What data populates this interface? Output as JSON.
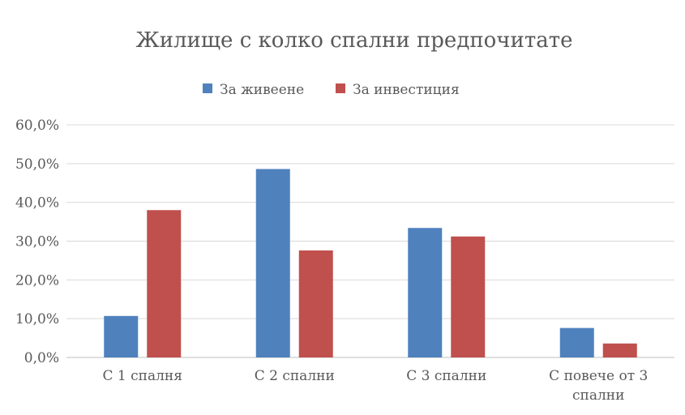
{
  "chart_data": {
    "type": "bar",
    "title": "Жилище с колко спални предпочитате",
    "categories": [
      [
        "С 1 спалня"
      ],
      [
        "С 2 спални"
      ],
      [
        "С 3 спални"
      ],
      [
        "С повече от 3",
        "спални"
      ]
    ],
    "series": [
      {
        "name": "За живеене",
        "color": "#4F81BD",
        "values": [
          10.7,
          48.6,
          33.4,
          7.6
        ]
      },
      {
        "name": "За инвестиция",
        "color": "#C0504D",
        "values": [
          38.0,
          27.6,
          31.2,
          3.6
        ]
      }
    ],
    "ylim": [
      0,
      60
    ],
    "yticks": [
      "0,0%",
      "10,0%",
      "20,0%",
      "30,0%",
      "40,0%",
      "50,0%",
      "60,0%"
    ],
    "grid": true,
    "legend_position": "top"
  }
}
